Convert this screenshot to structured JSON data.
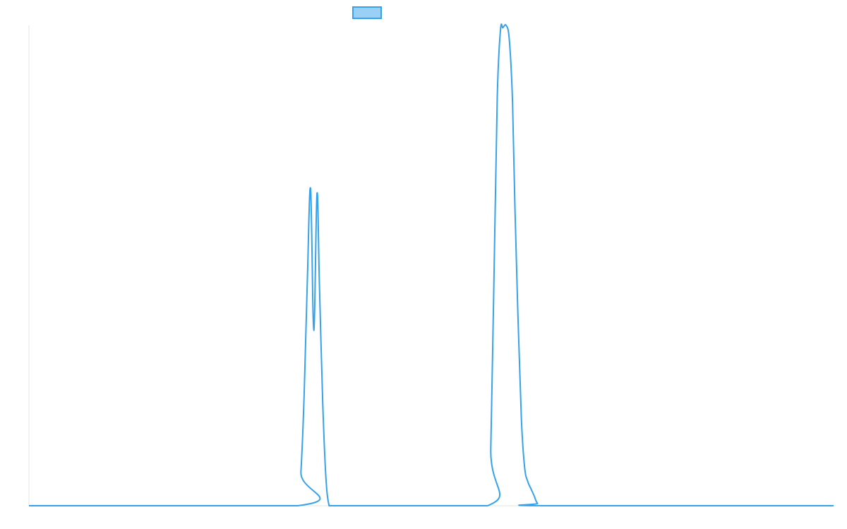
{
  "chart_data": {
    "type": "line",
    "title": "",
    "xlabel": "",
    "ylabel": "",
    "grid": false,
    "legend": {
      "position": "top-center",
      "entries": [
        {
          "name": "",
          "color": "#36a2eb",
          "fill": "#9ad0f5"
        }
      ]
    },
    "xlim": [
      0,
      100
    ],
    "ylim": [
      0,
      100
    ],
    "series": [
      {
        "name": "",
        "color": "#36a2eb",
        "x": [
          0,
          33.4,
          33.8,
          34.2,
          34.6,
          35,
          35.4,
          35.8,
          36.1,
          36.5,
          36.9,
          37.3,
          37.7,
          38.1,
          38.5,
          38.9,
          39.4,
          57.0,
          57.4,
          57.8,
          58.2,
          58.6,
          58.9,
          59.3,
          59.7,
          60.1,
          60.4,
          60.8,
          61.2,
          61.6,
          62.0,
          62.4,
          62.8,
          63.2,
          64.0,
          100
        ],
        "y": [
          0,
          0,
          7,
          23,
          47,
          66,
          36.5,
          65,
          46,
          22,
          6,
          0,
          0,
          0,
          0,
          0,
          0,
          0,
          12,
          48,
          85,
          99,
          99.5,
          100,
          97,
          84,
          62,
          38,
          18,
          8,
          5,
          3.5,
          2,
          0.5,
          0,
          0
        ]
      }
    ]
  }
}
